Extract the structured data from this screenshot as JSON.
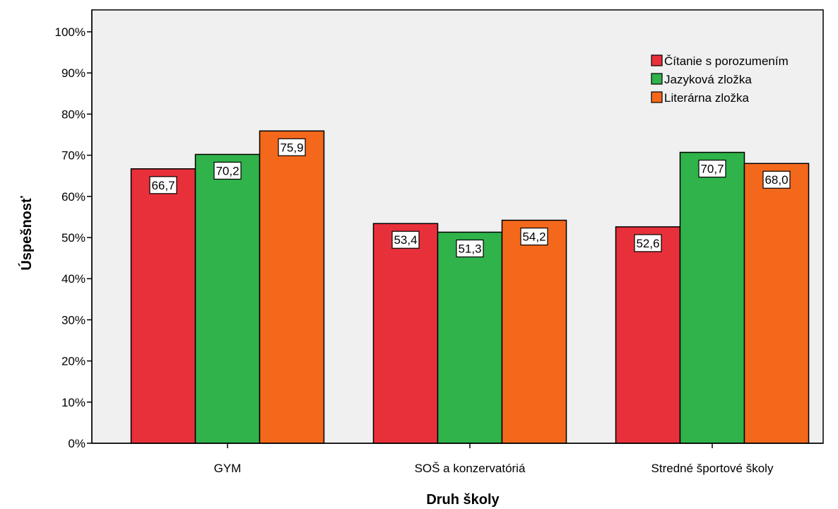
{
  "chart_data": {
    "type": "bar",
    "title": "",
    "xlabel": "Druh školy",
    "ylabel": "Úspešnosť",
    "categories": [
      "GYM",
      "SOŠ a konzervatóriá",
      "Stredné športové školy"
    ],
    "series": [
      {
        "name": "Čítanie s porozumením",
        "color": "#e8303a",
        "values": [
          66.7,
          53.4,
          52.6
        ],
        "labels": [
          "66,7",
          "53,4",
          "52,6"
        ]
      },
      {
        "name": "Jazyková zložka",
        "color": "#2fb34a",
        "values": [
          70.2,
          51.3,
          70.7
        ],
        "labels": [
          "70,2",
          "51,3",
          "70,7"
        ]
      },
      {
        "name": "Literárna zložka",
        "color": "#f4681c",
        "values": [
          75.9,
          54.2,
          68.0
        ],
        "labels": [
          "75,9",
          "54,2",
          "68,0"
        ]
      }
    ],
    "ylim": [
      0,
      100
    ],
    "yticks": [
      "0%",
      "10%",
      "20%",
      "30%",
      "40%",
      "50%",
      "60%",
      "70%",
      "80%",
      "90%",
      "100%"
    ],
    "grid": false,
    "legend_position": "top-right",
    "plot_background": "#f0f0f0"
  }
}
